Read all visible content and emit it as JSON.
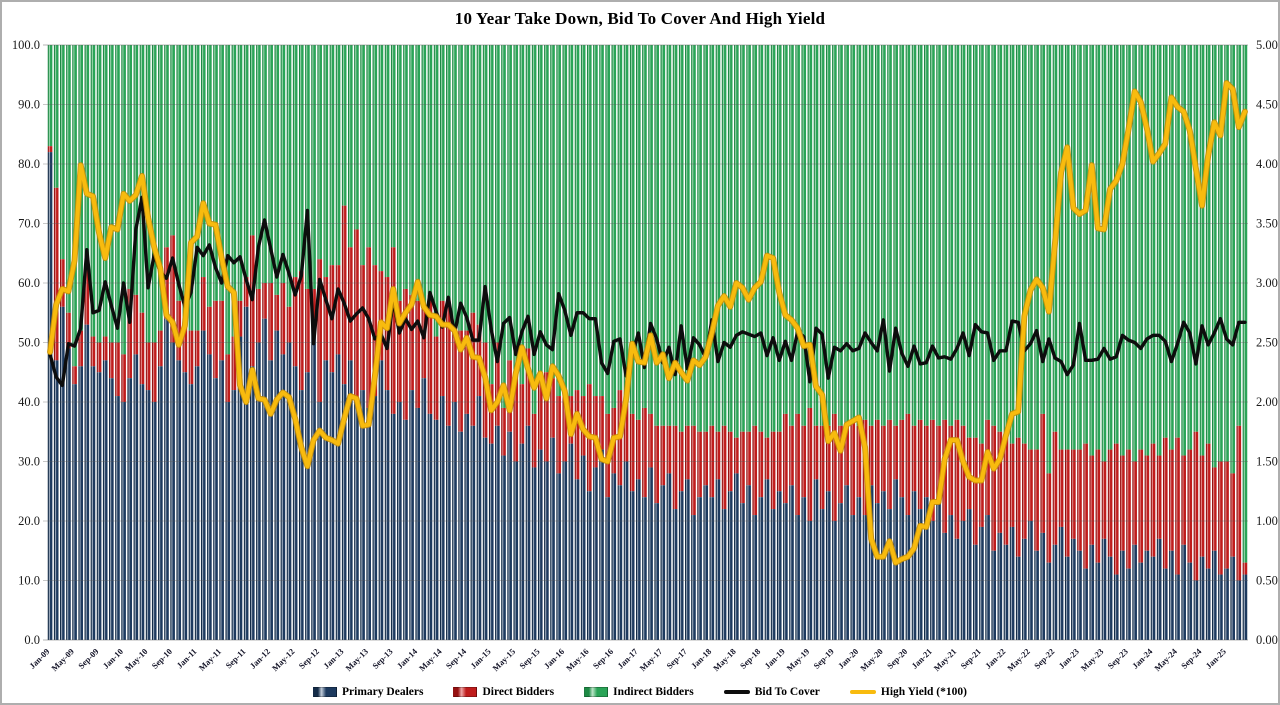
{
  "header": {
    "title": "10 Year Take Down, Bid To Cover And High Yield"
  },
  "legend": {
    "items": [
      {
        "label": "Primary Dealers",
        "kind": "bar",
        "color": "#1d3a5f",
        "color_light": "#c3cdda",
        "color_dark": "#142c48"
      },
      {
        "label": "Direct Bidders",
        "kind": "bar",
        "color": "#bf1c1c",
        "color_light": "#efa6a6",
        "color_dark": "#961111"
      },
      {
        "label": "Indirect Bidders",
        "kind": "bar",
        "color": "#2aa457",
        "color_light": "#bce4c7",
        "color_dark": "#1e8a45"
      },
      {
        "label": "Bid To Cover",
        "kind": "line",
        "color": "#0d0d0d"
      },
      {
        "label": "High Yield (*100)",
        "kind": "line",
        "color": "#f8bb0e"
      }
    ]
  },
  "chart_data": {
    "type": "bar",
    "subtype": "stacked-bars-with-line-overlays",
    "n_months": 196,
    "months_start": "Jan-09",
    "months_end": "Apr-25",
    "x_tick_every": 4,
    "x_tick_labels": [
      "Jan-09",
      "May-09",
      "Sep-09",
      "Jan-10",
      "May-10",
      "Sep-10",
      "Jan-11",
      "May-11",
      "Sep-11",
      "Jan-12",
      "May-12",
      "Sep-12",
      "Jan-13",
      "May-13",
      "Sep-13",
      "Jan-14",
      "May-14",
      "Sep-14",
      "Jan-15",
      "May-15",
      "Sep-15",
      "Jan-16",
      "May-16",
      "Sep-16",
      "Jan-17",
      "May-17",
      "Sep-17",
      "Jan-18",
      "May-18",
      "Sep-18",
      "Jan-19",
      "May-19",
      "Sep-19",
      "Jan-20",
      "May-20",
      "Sep-20",
      "Jan-21",
      "May-21",
      "Sep-21",
      "Jan-22",
      "May-22",
      "Sep-22",
      "Jan-23",
      "May-23",
      "Sep-23",
      "Jan-24",
      "May-24",
      "Sep-24",
      "Jan-25"
    ],
    "left_axis": {
      "min": 0,
      "max": 100,
      "tick_labels_top_to_bottom": [
        "100.0",
        "90.0",
        "80.0",
        "70.0",
        "60.0",
        "50.0",
        "40.0",
        "30.0",
        "20.0",
        "10.0",
        "0.0"
      ]
    },
    "right_axis": {
      "min": 0,
      "max": 5,
      "tick_labels_top_to_bottom": [
        "5.00",
        "4.50",
        "4.00",
        "3.50",
        "3.00",
        "2.50",
        "2.00",
        "1.50",
        "1.00",
        "0.50",
        "0.00"
      ]
    },
    "grid": true,
    "indirect_bidders_rule": "100 - primary_dealers - direct_bidders",
    "series": [
      {
        "name": "Primary Dealers",
        "type": "bar",
        "axis": "left",
        "values": [
          82,
          47,
          56,
          49,
          43,
          46,
          53,
          46,
          45,
          47,
          44,
          41,
          40,
          44,
          48,
          43,
          42,
          40,
          46,
          54,
          50,
          47,
          45,
          43,
          46,
          52,
          48,
          44,
          47,
          40,
          42,
          51,
          56,
          46,
          50,
          54,
          47,
          52,
          48,
          50,
          46,
          42,
          45,
          54,
          40,
          47,
          45,
          48,
          43,
          47,
          40,
          42,
          39,
          41,
          47,
          42,
          38,
          40,
          37,
          42,
          39,
          44,
          38,
          37,
          41,
          36,
          40,
          35,
          38,
          36,
          41,
          34,
          33,
          36,
          31,
          35,
          30,
          33,
          36,
          29,
          32,
          30,
          34,
          28,
          30,
          33,
          27,
          31,
          25,
          29,
          32,
          24,
          28,
          26,
          30,
          25,
          27,
          24,
          29,
          23,
          26,
          28,
          22,
          25,
          27,
          21,
          24,
          26,
          24,
          27,
          22,
          25,
          28,
          23,
          26,
          21,
          24,
          27,
          22,
          25,
          23,
          26,
          21,
          24,
          20,
          27,
          22,
          25,
          20,
          23,
          26,
          21,
          24,
          21,
          26,
          23,
          25,
          22,
          27,
          24,
          21,
          25,
          22,
          24,
          20,
          23,
          18,
          21,
          17,
          20,
          22,
          16,
          19,
          21,
          15,
          18,
          16,
          19,
          14,
          17,
          20,
          15,
          18,
          13,
          16,
          19,
          14,
          17,
          15,
          12,
          16,
          13,
          17,
          14,
          11,
          15,
          12,
          16,
          13,
          15,
          14,
          17,
          12,
          15,
          11,
          16,
          13,
          10,
          14,
          12,
          15,
          11,
          12,
          14,
          10,
          11
        ]
      },
      {
        "name": "Direct Bidders",
        "type": "bar",
        "axis": "left",
        "values": [
          1,
          29,
          8,
          6,
          3,
          6,
          10,
          5,
          5,
          4,
          6,
          9,
          8,
          15,
          10,
          12,
          8,
          10,
          6,
          12,
          18,
          10,
          8,
          9,
          6,
          9,
          8,
          13,
          10,
          8,
          9,
          6,
          5,
          22,
          9,
          6,
          13,
          6,
          12,
          6,
          15,
          20,
          14,
          5,
          24,
          14,
          18,
          15,
          30,
          19,
          29,
          21,
          27,
          22,
          15,
          19,
          28,
          17,
          22,
          16,
          18,
          12,
          20,
          14,
          16,
          21,
          13,
          17,
          14,
          19,
          12,
          16,
          10,
          14,
          8,
          12,
          15,
          10,
          13,
          9,
          12,
          15,
          10,
          13,
          12,
          8,
          15,
          10,
          18,
          12,
          9,
          14,
          11,
          16,
          10,
          13,
          10,
          15,
          9,
          13,
          10,
          8,
          14,
          10,
          9,
          15,
          11,
          9,
          12,
          8,
          14,
          10,
          6,
          12,
          9,
          15,
          11,
          7,
          13,
          10,
          15,
          10,
          17,
          12,
          19,
          9,
          14,
          11,
          18,
          13,
          10,
          16,
          12,
          16,
          10,
          14,
          11,
          15,
          9,
          13,
          17,
          11,
          15,
          12,
          17,
          13,
          19,
          15,
          20,
          16,
          12,
          18,
          14,
          16,
          21,
          17,
          18,
          14,
          20,
          16,
          12,
          17,
          20,
          15,
          19,
          13,
          18,
          15,
          17,
          21,
          15,
          19,
          13,
          18,
          22,
          16,
          20,
          14,
          19,
          16,
          19,
          14,
          22,
          17,
          23,
          15,
          19,
          25,
          17,
          21,
          14,
          19,
          18,
          14,
          26,
          2
        ]
      },
      {
        "name": "Bid To Cover",
        "type": "line",
        "axis": "right",
        "values": [
          2.4,
          2.21,
          2.14,
          2.49,
          2.47,
          2.62,
          3.28,
          2.75,
          2.77,
          3.01,
          2.81,
          2.62,
          3.0,
          2.67,
          3.45,
          3.72,
          2.96,
          3.24,
          3.09,
          3.04,
          3.21,
          2.99,
          2.8,
          2.92,
          3.3,
          3.23,
          3.32,
          3.13,
          3.0,
          3.23,
          3.17,
          3.22,
          3.03,
          2.86,
          3.3,
          3.53,
          3.29,
          3.05,
          3.24,
          3.08,
          2.9,
          3.06,
          3.61,
          2.49,
          3.03,
          2.86,
          2.7,
          2.95,
          2.83,
          2.68,
          2.74,
          2.79,
          2.7,
          2.53,
          2.57,
          2.45,
          2.86,
          2.58,
          2.7,
          2.61,
          2.68,
          2.54,
          2.92,
          2.76,
          2.63,
          2.88,
          2.57,
          2.83,
          2.71,
          2.52,
          2.52,
          2.97,
          2.61,
          2.34,
          2.66,
          2.71,
          2.4,
          2.59,
          2.72,
          2.4,
          2.59,
          2.48,
          2.44,
          2.91,
          2.77,
          2.56,
          2.75,
          2.75,
          2.7,
          2.7,
          2.33,
          2.24,
          2.51,
          2.53,
          2.22,
          2.39,
          2.58,
          2.29,
          2.66,
          2.53,
          2.33,
          2.46,
          2.23,
          2.64,
          2.28,
          2.54,
          2.48,
          2.37,
          2.69,
          2.34,
          2.5,
          2.46,
          2.56,
          2.59,
          2.57,
          2.55,
          2.58,
          2.39,
          2.54,
          2.35,
          2.51,
          2.35,
          2.59,
          2.55,
          2.17,
          2.62,
          2.57,
          2.2,
          2.46,
          2.43,
          2.49,
          2.43,
          2.45,
          2.58,
          2.5,
          2.43,
          2.69,
          2.26,
          2.62,
          2.41,
          2.3,
          2.47,
          2.32,
          2.33,
          2.47,
          2.37,
          2.38,
          2.36,
          2.45,
          2.58,
          2.39,
          2.65,
          2.59,
          2.58,
          2.35,
          2.43,
          2.43,
          2.68,
          2.67,
          2.43,
          2.49,
          2.6,
          2.34,
          2.53,
          2.37,
          2.34,
          2.23,
          2.31,
          2.66,
          2.35,
          2.35,
          2.36,
          2.45,
          2.36,
          2.38,
          2.56,
          2.52,
          2.5,
          2.45,
          2.53,
          2.56,
          2.56,
          2.51,
          2.34,
          2.49,
          2.67,
          2.58,
          2.32,
          2.64,
          2.48,
          2.58,
          2.7,
          2.53,
          2.48,
          2.67,
          2.67
        ]
      },
      {
        "name": "High Yield (*100)",
        "type": "line",
        "axis": "right",
        "values": [
          2.42,
          2.82,
          2.95,
          2.93,
          3.19,
          3.99,
          3.75,
          3.73,
          3.42,
          3.21,
          3.47,
          3.45,
          3.75,
          3.69,
          3.74,
          3.9,
          3.55,
          3.3,
          3.12,
          2.73,
          2.67,
          2.48,
          2.64,
          3.34,
          3.39,
          3.67,
          3.5,
          3.49,
          3.21,
          2.97,
          2.92,
          2.14,
          2.0,
          2.27,
          2.03,
          2.02,
          1.9,
          2.02,
          2.08,
          2.04,
          1.86,
          1.62,
          1.46,
          1.68,
          1.76,
          1.7,
          1.68,
          1.65,
          1.86,
          2.05,
          2.03,
          1.8,
          1.81,
          2.21,
          2.67,
          2.62,
          2.95,
          2.66,
          2.75,
          2.82,
          3.01,
          2.8,
          2.73,
          2.72,
          2.65,
          2.65,
          2.6,
          2.44,
          2.54,
          2.38,
          2.37,
          2.21,
          1.93,
          2.0,
          2.14,
          1.93,
          2.24,
          2.46,
          2.28,
          2.12,
          2.24,
          2.03,
          2.3,
          2.22,
          2.09,
          1.73,
          1.9,
          1.77,
          1.71,
          1.7,
          1.52,
          1.5,
          1.7,
          1.71,
          2.02,
          2.49,
          2.34,
          2.33,
          2.56,
          2.33,
          2.4,
          2.2,
          2.33,
          2.25,
          2.18,
          2.35,
          2.31,
          2.38,
          2.58,
          2.81,
          2.89,
          2.8,
          3.0,
          2.96,
          2.86,
          2.96,
          3.01,
          3.23,
          3.21,
          2.92,
          2.73,
          2.69,
          2.62,
          2.47,
          2.48,
          2.13,
          2.06,
          1.67,
          1.74,
          1.59,
          1.81,
          1.84,
          1.87,
          1.62,
          0.85,
          0.7,
          0.7,
          0.83,
          0.65,
          0.68,
          0.7,
          0.77,
          0.96,
          0.95,
          1.16,
          1.16,
          1.52,
          1.68,
          1.68,
          1.5,
          1.37,
          1.34,
          1.34,
          1.58,
          1.44,
          1.52,
          1.72,
          1.9,
          1.92,
          2.72,
          2.94,
          3.03,
          2.96,
          2.76,
          3.33,
          3.93,
          4.14,
          3.63,
          3.58,
          3.61,
          3.99,
          3.46,
          3.45,
          3.79,
          3.86,
          4.0,
          4.29,
          4.61,
          4.52,
          4.3,
          4.02,
          4.09,
          4.17,
          4.56,
          4.48,
          4.44,
          4.28,
          3.96,
          3.65,
          4.07,
          4.35,
          4.24,
          4.68,
          4.63,
          4.31,
          4.44
        ]
      }
    ]
  }
}
